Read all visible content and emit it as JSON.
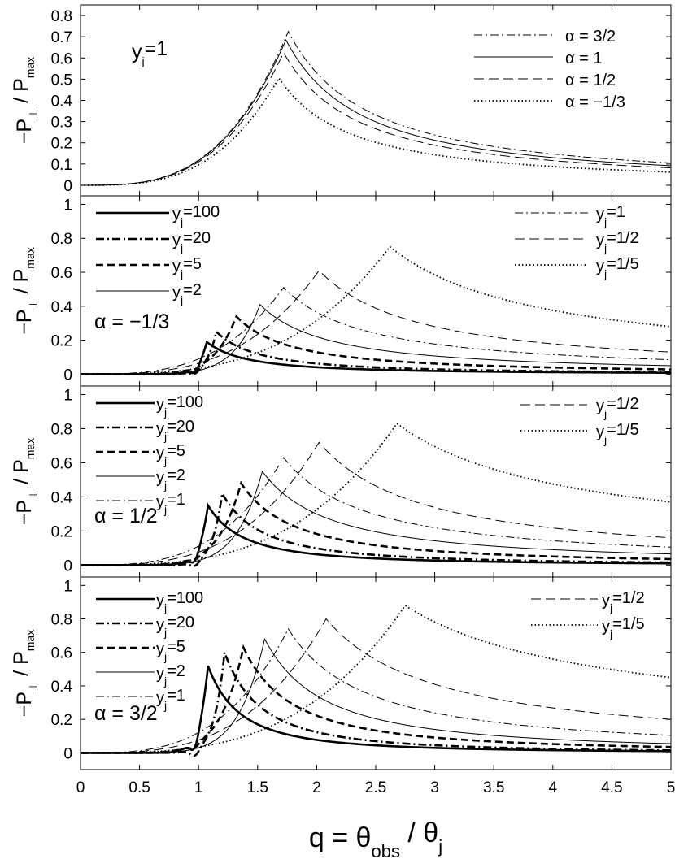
{
  "chart_data": {
    "type": "line",
    "x": {
      "range": [
        0,
        5
      ],
      "ticks": [
        0,
        0.5,
        1,
        1.5,
        2,
        2.5,
        3,
        3.5,
        4,
        4.5,
        5
      ],
      "tick_labels": [
        "0",
        "0.5",
        "1",
        "1.5",
        "2",
        "2.5",
        "3",
        "3.5",
        "4",
        "4.5",
        "5"
      ],
      "label": {
        "pre": "q = θ",
        "sub1": "obs",
        "mid": " / θ",
        "sub2": "j"
      }
    },
    "ylabel": {
      "pre": "−P",
      "sub1": "⊥",
      "mid": " / P",
      "sub2": "max"
    },
    "panels": [
      {
        "annotation": {
          "pre": "y",
          "sub": "j",
          "post": "=1"
        },
        "ylim": [
          -0.05,
          0.85
        ],
        "yticks": [
          0,
          0.1,
          0.2,
          0.3,
          0.4,
          0.5,
          0.6,
          0.7,
          0.8
        ],
        "ytick_labels": [
          "0",
          "0.1",
          "0.2",
          "0.3",
          "0.4",
          "0.5",
          "0.6",
          "0.7",
          "0.8"
        ],
        "series": [
          {
            "name": "α = 3/2",
            "style": "dashdot",
            "peak_q": 1.76,
            "peak": 0.725,
            "tail_at_5": 0.105
          },
          {
            "name": "α = 1",
            "style": "solid-thin",
            "peak_q": 1.74,
            "peak": 0.685,
            "tail_at_5": 0.092
          },
          {
            "name": "α = 1/2",
            "style": "dashed-thin",
            "peak_q": 1.72,
            "peak": 0.625,
            "tail_at_5": 0.082
          },
          {
            "name": "α = −1/3",
            "style": "dotted",
            "peak_q": 1.68,
            "peak": 0.505,
            "tail_at_5": 0.062
          }
        ]
      },
      {
        "annotation": {
          "text": "α = −1/3"
        },
        "ylim": [
          -0.07,
          1.05
        ],
        "yticks": [
          0,
          0.2,
          0.4,
          0.6,
          0.8,
          1
        ],
        "ytick_labels": [
          "0",
          "0.2",
          "0.4",
          "0.6",
          "0.8",
          "1"
        ],
        "series": [
          {
            "name": "yj=100",
            "label_parts": [
              "y",
              "j",
              "=100"
            ],
            "style": "solid-thick",
            "peak_q": 1.07,
            "peak": 0.19,
            "dip": -0.035,
            "tail_at_5": 0.008
          },
          {
            "name": "yj=20",
            "label_parts": [
              "y",
              "j",
              "=20"
            ],
            "style": "dashdot-thick",
            "peak_q": 1.15,
            "peak": 0.25,
            "dip": -0.02,
            "tail_at_5": 0.012
          },
          {
            "name": "yj=5",
            "label_parts": [
              "y",
              "j",
              "=5"
            ],
            "style": "dashed-thick",
            "peak_q": 1.32,
            "peak": 0.34,
            "dip": -0.01,
            "tail_at_5": 0.028
          },
          {
            "name": "yj=2",
            "label_parts": [
              "y",
              "j",
              "=2"
            ],
            "style": "solid-thin",
            "peak_q": 1.52,
            "peak": 0.41,
            "tail_at_5": 0.05
          },
          {
            "name": "yj=1",
            "label_parts": [
              "y",
              "j",
              "=1"
            ],
            "style": "dashdot",
            "peak_q": 1.72,
            "peak": 0.51,
            "tail_at_5": 0.085
          },
          {
            "name": "yj=1/2",
            "label_parts": [
              "y",
              "j",
              "=1/2"
            ],
            "style": "dashed-thin",
            "peak_q": 2.02,
            "peak": 0.61,
            "tail_at_5": 0.13
          },
          {
            "name": "yj=1/5",
            "label_parts": [
              "y",
              "j",
              "=1/5"
            ],
            "style": "dotted",
            "peak_q": 2.62,
            "peak": 0.75,
            "tail_at_5": 0.28
          }
        ]
      },
      {
        "annotation": {
          "text": "α = 1/2"
        },
        "ylim": [
          -0.07,
          1.05
        ],
        "yticks": [
          0,
          0.2,
          0.4,
          0.6,
          0.8,
          1
        ],
        "ytick_labels": [
          "0",
          "0.2",
          "0.4",
          "0.6",
          "0.8",
          "1"
        ],
        "series": [
          {
            "name": "yj=100",
            "label_parts": [
              "y",
              "j",
              "=100"
            ],
            "style": "solid-thick",
            "peak_q": 1.08,
            "peak": 0.35,
            "dip": -0.05,
            "tail_at_5": 0.01
          },
          {
            "name": "yj=20",
            "label_parts": [
              "y",
              "j",
              "=20"
            ],
            "style": "dashdot-thick",
            "peak_q": 1.2,
            "peak": 0.42,
            "dip": -0.025,
            "tail_at_5": 0.015
          },
          {
            "name": "yj=5",
            "label_parts": [
              "y",
              "j",
              "=5"
            ],
            "style": "dashed-thick",
            "peak_q": 1.36,
            "peak": 0.48,
            "dip": -0.012,
            "tail_at_5": 0.035
          },
          {
            "name": "yj=2",
            "label_parts": [
              "y",
              "j",
              "=2"
            ],
            "style": "solid-thin",
            "peak_q": 1.54,
            "peak": 0.55,
            "tail_at_5": 0.065
          },
          {
            "name": "yj=1",
            "label_parts": [
              "y",
              "j",
              "=1"
            ],
            "style": "dashdot",
            "peak_q": 1.72,
            "peak": 0.63,
            "tail_at_5": 0.105
          },
          {
            "name": "yj=1/2",
            "label_parts": [
              "y",
              "j",
              "=1/2"
            ],
            "style": "dashed-thin",
            "peak_q": 2.02,
            "peak": 0.72,
            "tail_at_5": 0.16
          },
          {
            "name": "yj=1/5",
            "label_parts": [
              "y",
              "j",
              "=1/5"
            ],
            "style": "dotted",
            "peak_q": 2.68,
            "peak": 0.83,
            "tail_at_5": 0.37
          }
        ]
      },
      {
        "annotation": {
          "text": "α = 3/2"
        },
        "ylim": [
          -0.1,
          1.05
        ],
        "yticks": [
          0,
          0.2,
          0.4,
          0.6,
          0.8,
          1
        ],
        "ytick_labels": [
          "0",
          "0.2",
          "0.4",
          "0.6",
          "0.8",
          "1"
        ],
        "series": [
          {
            "name": "yj=100",
            "label_parts": [
              "y",
              "j",
              "=100"
            ],
            "style": "solid-thick",
            "peak_q": 1.08,
            "peak": 0.52,
            "dip": -0.08,
            "tail_at_5": 0.01
          },
          {
            "name": "yj=20",
            "label_parts": [
              "y",
              "j",
              "=20"
            ],
            "style": "dashdot-thick",
            "peak_q": 1.22,
            "peak": 0.6,
            "dip": -0.04,
            "tail_at_5": 0.015
          },
          {
            "name": "yj=5",
            "label_parts": [
              "y",
              "j",
              "=5"
            ],
            "style": "dashed-thick",
            "peak_q": 1.38,
            "peak": 0.63,
            "dip": -0.02,
            "tail_at_5": 0.035
          },
          {
            "name": "yj=2",
            "label_parts": [
              "y",
              "j",
              "=2"
            ],
            "style": "solid-thin",
            "peak_q": 1.56,
            "peak": 0.68,
            "tail_at_5": 0.055
          },
          {
            "name": "yj=1",
            "label_parts": [
              "y",
              "j",
              "=1"
            ],
            "style": "dashdot",
            "peak_q": 1.76,
            "peak": 0.74,
            "tail_at_5": 0.105
          },
          {
            "name": "yj=1/2",
            "label_parts": [
              "y",
              "j",
              "=1/2"
            ],
            "style": "dashed-thin",
            "peak_q": 2.08,
            "peak": 0.8,
            "tail_at_5": 0.2
          },
          {
            "name": "yj=1/5",
            "label_parts": [
              "y",
              "j",
              "=1/5"
            ],
            "style": "dotted",
            "peak_q": 2.75,
            "peak": 0.88,
            "tail_at_5": 0.45
          }
        ]
      }
    ]
  }
}
